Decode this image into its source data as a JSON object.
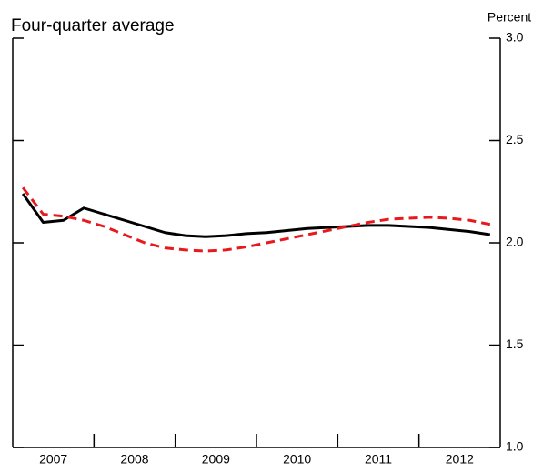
{
  "chart_data": {
    "type": "line",
    "title": "Four-quarter average",
    "y_label": "Percent",
    "x": [
      2007.125,
      2007.375,
      2007.625,
      2007.875,
      2008.125,
      2008.375,
      2008.625,
      2008.875,
      2009.125,
      2009.375,
      2009.625,
      2009.875,
      2010.125,
      2010.375,
      2010.625,
      2010.875,
      2011.125,
      2011.375,
      2011.625,
      2011.875,
      2012.125,
      2012.375,
      2012.625,
      2012.875
    ],
    "series": [
      {
        "color": "#000000",
        "dash": false,
        "values": [
          2.24,
          2.1,
          2.11,
          2.17,
          2.14,
          2.11,
          2.08,
          2.05,
          2.035,
          2.03,
          2.035,
          2.045,
          2.05,
          2.06,
          2.07,
          2.075,
          2.08,
          2.085,
          2.085,
          2.08,
          2.075,
          2.065,
          2.055,
          2.04
        ]
      },
      {
        "color": "#e8191c",
        "dash": true,
        "values": [
          2.27,
          2.14,
          2.13,
          2.11,
          2.08,
          2.04,
          2.0,
          1.975,
          1.965,
          1.96,
          1.965,
          1.98,
          2.0,
          2.02,
          2.04,
          2.06,
          2.08,
          2.1,
          2.115,
          2.12,
          2.125,
          2.12,
          2.11,
          2.09
        ]
      }
    ],
    "xlim": [
      2007,
      2013
    ],
    "xticks": [
      {
        "value": 2007.5,
        "label": "2007"
      },
      {
        "value": 2008.5,
        "label": "2008"
      },
      {
        "value": 2009.5,
        "label": "2009"
      },
      {
        "value": 2010.5,
        "label": "2010"
      },
      {
        "value": 2011.5,
        "label": "2011"
      },
      {
        "value": 2012.5,
        "label": "2012"
      }
    ],
    "ylim": [
      1.0,
      3.0
    ],
    "yticks": [
      {
        "value": 1.0,
        "label": "1.0"
      },
      {
        "value": 1.5,
        "label": "1.5"
      },
      {
        "value": 2.0,
        "label": "2.0"
      },
      {
        "value": 2.5,
        "label": "2.5"
      },
      {
        "value": 3.0,
        "label": "3.0"
      }
    ]
  }
}
